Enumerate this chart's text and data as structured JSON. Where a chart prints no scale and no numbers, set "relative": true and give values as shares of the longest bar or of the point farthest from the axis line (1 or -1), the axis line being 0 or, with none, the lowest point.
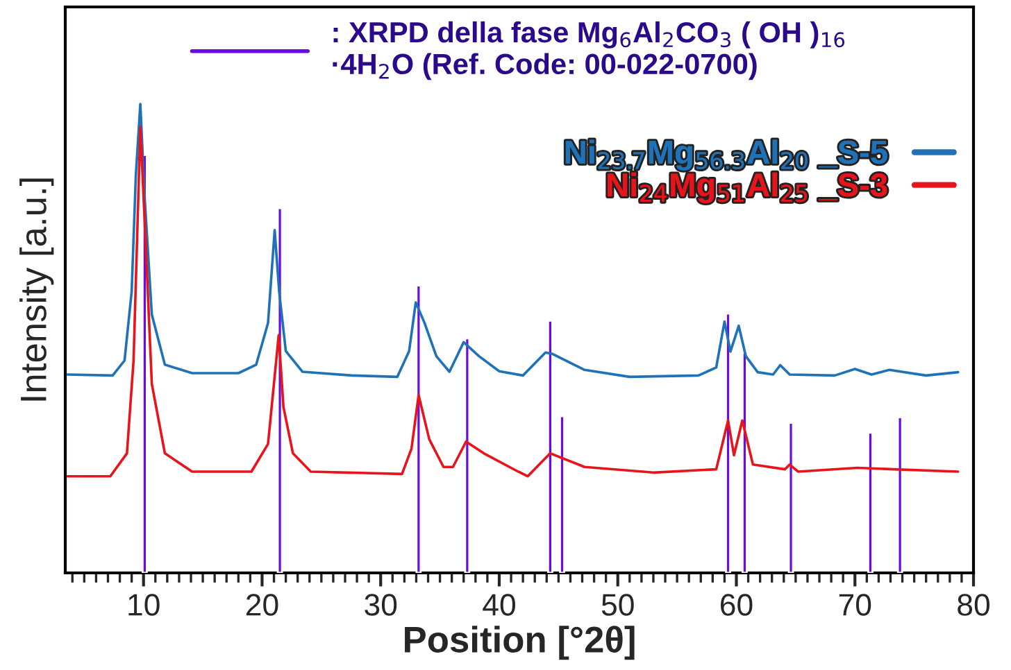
{
  "chart_data": {
    "type": "line",
    "relative": true,
    "xlabel": "Position [°2θ]",
    "ylabel": "Intensity [a.u.]",
    "xlim": [
      3.4,
      80
    ],
    "xticks": [
      10,
      20,
      30,
      40,
      50,
      60,
      70,
      80
    ],
    "legend": "top right",
    "grid": false,
    "series": [
      {
        "name": "Ni$_{23.7}$Mg$_{56.3}$Al$_{20}$ _S-5",
        "color": "#1f72b8",
        "x": [
          3.6,
          7.4,
          8.4,
          9.0,
          9.35,
          9.73,
          10.1,
          10.7,
          11.8,
          14.1,
          18.0,
          19.5,
          20.5,
          21.06,
          21.44,
          22.0,
          23.4,
          27.6,
          31.4,
          32.4,
          32.96,
          33.7,
          34.7,
          35.8,
          37.0,
          38.3,
          40.0,
          42.0,
          43.9,
          44.5,
          47.2,
          51.0,
          56.8,
          58.3,
          59.0,
          59.5,
          60.2,
          60.8,
          61.8,
          63.1,
          63.7,
          64.5,
          68.3,
          70.0,
          71.4,
          72.9,
          76.0,
          78.7
        ],
        "values": [
          0.423,
          0.421,
          0.453,
          0.6,
          0.847,
          1.0,
          0.799,
          0.551,
          0.444,
          0.426,
          0.426,
          0.444,
          0.533,
          0.731,
          0.6,
          0.473,
          0.429,
          0.421,
          0.418,
          0.473,
          0.577,
          0.533,
          0.462,
          0.429,
          0.492,
          0.462,
          0.43,
          0.421,
          0.47,
          0.467,
          0.433,
          0.418,
          0.421,
          0.438,
          0.536,
          0.472,
          0.527,
          0.462,
          0.428,
          0.423,
          0.443,
          0.423,
          0.421,
          0.435,
          0.423,
          0.433,
          0.421,
          0.428
        ]
      },
      {
        "name": "Ni$_{24}$Mg$_{51}$Al$_{25}$ _S-3",
        "color": "#e8141c",
        "x": [
          3.6,
          7.2,
          8.6,
          9.16,
          9.73,
          10.1,
          10.7,
          11.8,
          14.1,
          19.1,
          20.5,
          21.4,
          21.8,
          22.6,
          24.1,
          31.8,
          32.6,
          33.2,
          34.1,
          35.3,
          36.1,
          37.2,
          38.7,
          41.6,
          42.4,
          44.3,
          47.2,
          53.0,
          58.3,
          59.3,
          59.8,
          60.5,
          61.4,
          64.1,
          64.5,
          65.2,
          70.2,
          73.3,
          78.7
        ],
        "values": [
          0.206,
          0.206,
          0.255,
          0.453,
          0.951,
          0.749,
          0.403,
          0.255,
          0.216,
          0.216,
          0.275,
          0.507,
          0.354,
          0.255,
          0.216,
          0.211,
          0.265,
          0.379,
          0.285,
          0.226,
          0.226,
          0.28,
          0.255,
          0.216,
          0.206,
          0.255,
          0.226,
          0.214,
          0.221,
          0.325,
          0.251,
          0.325,
          0.231,
          0.221,
          0.231,
          0.216,
          0.224,
          0.221,
          0.216
        ]
      },
      {
        "name": ": XRPD della fase Mg$_{6}$Al$_{2}$CO$_{3}$ ( OH )$_{16}$\n·4H$_{2}$O (Ref. Code: 00-022-0700)",
        "type": "bar",
        "color": "#6a0ae6",
        "x": [
          10.1,
          21.5,
          33.2,
          37.3,
          44.3,
          45.3,
          59.3,
          60.7,
          64.6,
          71.3,
          73.8
        ],
        "values": [
          0.891,
          0.778,
          0.613,
          0.5,
          0.538,
          0.334,
          0.553,
          0.47,
          0.32,
          0.299,
          0.332
        ]
      }
    ]
  }
}
